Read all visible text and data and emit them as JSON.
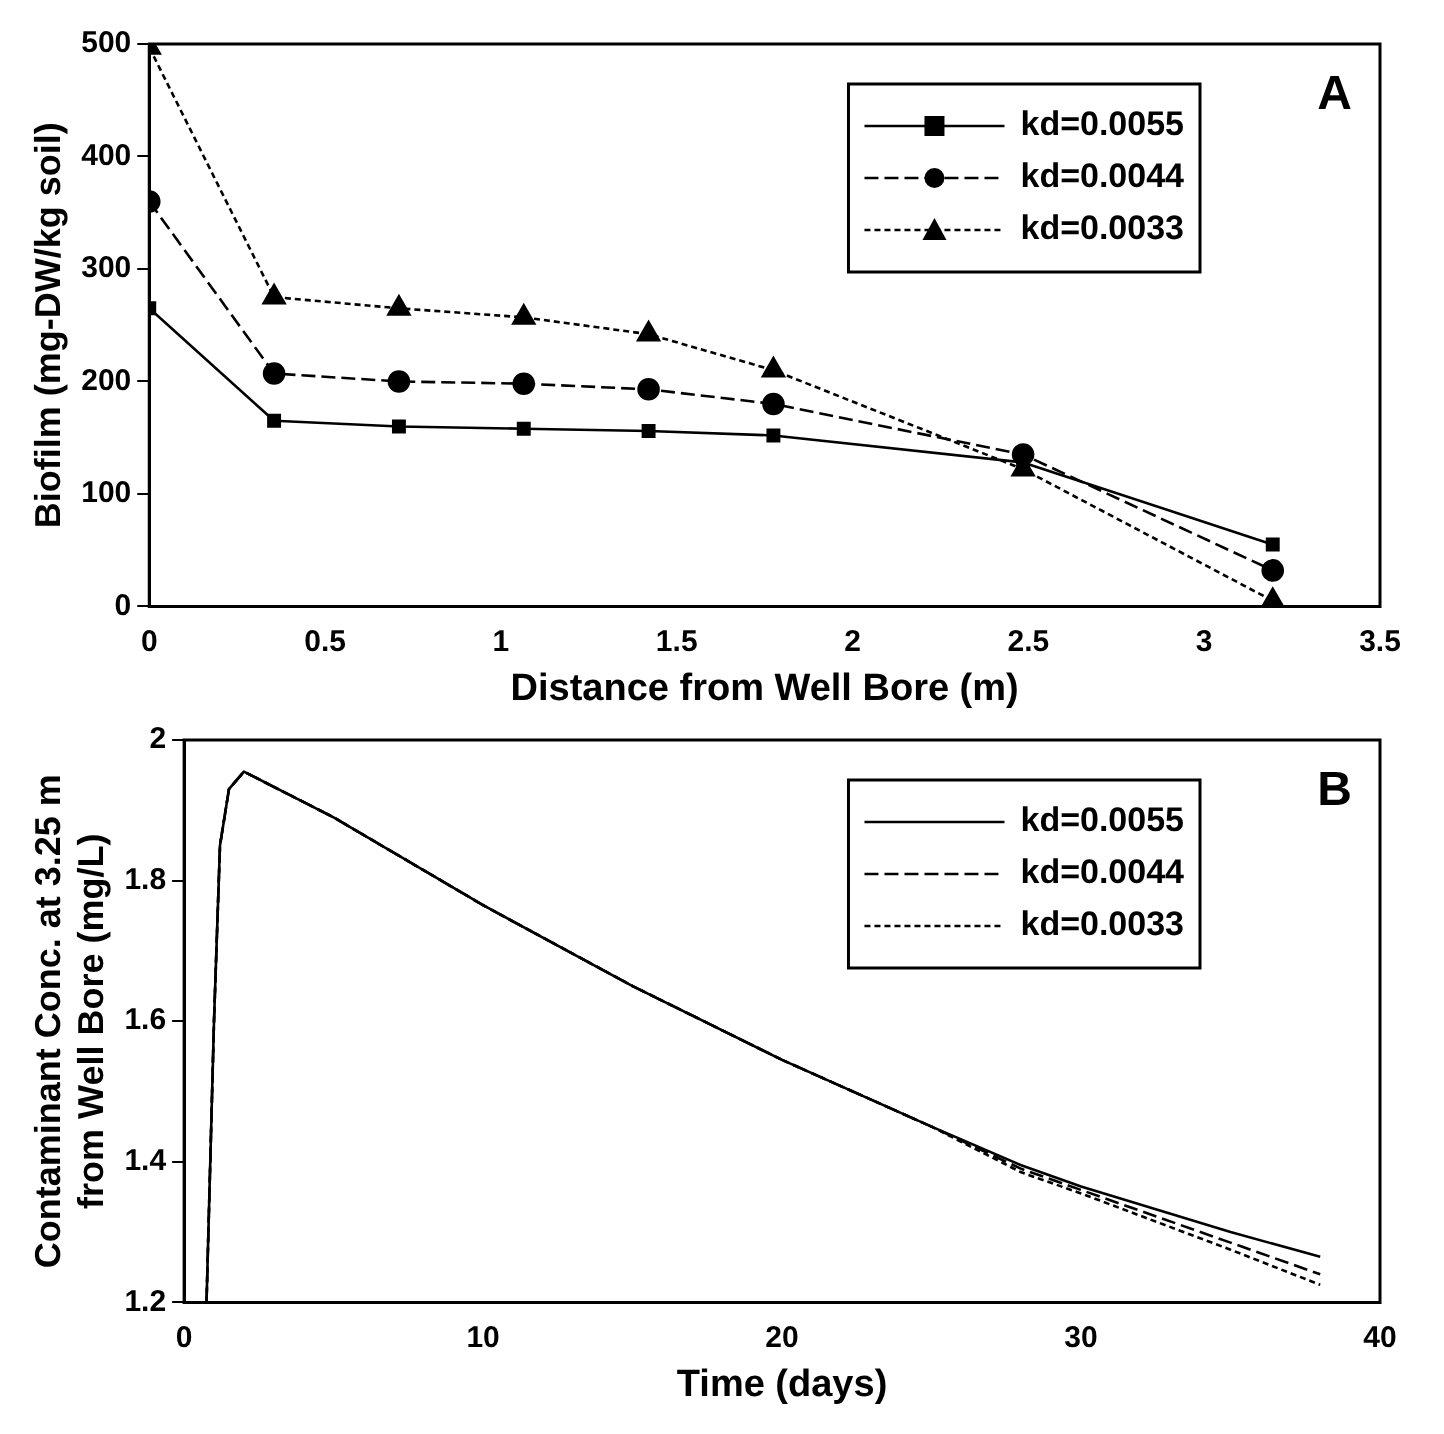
{
  "chart_data": [
    {
      "type": "line",
      "xlabel": "Distance from Well Bore (m)",
      "ylabel": "Biofilm (mg-DW/kg soil)",
      "x": [
        0,
        0.355,
        0.71,
        1.065,
        1.42,
        1.775,
        2.485,
        3.195
      ],
      "xlim": [
        0,
        3.5
      ],
      "xticks": [
        0,
        0.5,
        1,
        1.5,
        2,
        2.5,
        3,
        3.5
      ],
      "ylim": [
        0,
        500
      ],
      "yticks": [
        0,
        100,
        200,
        300,
        400,
        500
      ],
      "grid": false,
      "legend": "top right",
      "annotations": [
        "A"
      ],
      "series": [
        {
          "name": "kd=0.0055",
          "color": "#000000",
          "marker": "square",
          "line_style": "solid",
          "values": [
            265,
            165,
            160,
            158,
            156,
            152,
            128,
            55
          ]
        },
        {
          "name": "kd=0.0044",
          "color": "#000000",
          "marker": "circle",
          "line_style": "dashed",
          "values": [
            360,
            207,
            200,
            198,
            193,
            180,
            135,
            32
          ]
        },
        {
          "name": "kd=0.0033",
          "color": "#000000",
          "marker": "triangle",
          "line_style": "dotted",
          "values": [
            497,
            275,
            265,
            257,
            242,
            210,
            122,
            5
          ]
        }
      ]
    },
    {
      "type": "line",
      "xlabel": "Time (days)",
      "ylabel": "Contaminant Conc. at 3.25 m from Well Bore (mg/L)",
      "xlim": [
        0,
        40
      ],
      "xticks": [
        0,
        10,
        20,
        30,
        40
      ],
      "ylim": [
        1.2,
        2
      ],
      "yticks": [
        1.2,
        1.4,
        1.6,
        1.8,
        2
      ],
      "grid": false,
      "legend": "top right",
      "marker": "none",
      "annotations": [
        "B"
      ],
      "series": [
        {
          "name": "kd=0.0055",
          "color": "#000000",
          "line_style": "solid",
          "x": [
            0.75,
            1,
            1.2,
            1.5,
            2,
            5,
            10,
            15,
            20,
            25,
            28,
            30,
            35,
            38
          ],
          "values": [
            1.2,
            1.6,
            1.85,
            1.93,
            1.955,
            1.89,
            1.765,
            1.65,
            1.545,
            1.45,
            1.395,
            1.365,
            1.3,
            1.265
          ]
        },
        {
          "name": "kd=0.0044",
          "color": "#000000",
          "line_style": "dashed",
          "x": [
            0.75,
            1,
            1.2,
            1.5,
            2,
            5,
            10,
            15,
            20,
            25,
            28,
            30,
            35,
            38
          ],
          "values": [
            1.2,
            1.6,
            1.85,
            1.93,
            1.955,
            1.89,
            1.765,
            1.65,
            1.545,
            1.45,
            1.39,
            1.36,
            1.285,
            1.24
          ]
        },
        {
          "name": "kd=0.0033",
          "color": "#000000",
          "line_style": "dotted",
          "x": [
            0.75,
            1,
            1.2,
            1.5,
            2,
            5,
            10,
            15,
            20,
            25,
            28,
            30,
            35,
            38
          ],
          "values": [
            1.2,
            1.6,
            1.85,
            1.93,
            1.955,
            1.89,
            1.765,
            1.65,
            1.545,
            1.45,
            1.385,
            1.355,
            1.275,
            1.225
          ]
        }
      ]
    }
  ]
}
